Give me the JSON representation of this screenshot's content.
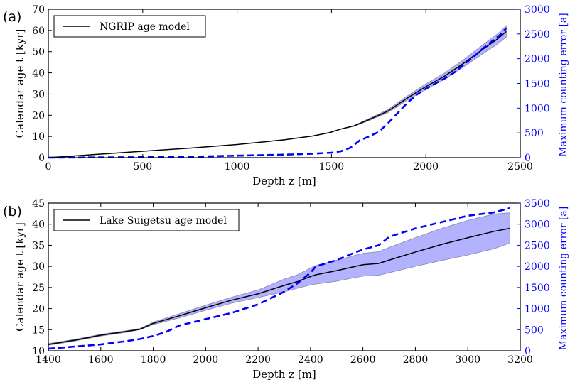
{
  "chart_data": [
    {
      "type": "line",
      "panel_label": "(a)",
      "xlabel": "Depth z [m]",
      "ylabel": "Calendar age t [kyr]",
      "y2label": "Maximum counting error [a]",
      "xlim": [
        0,
        2500
      ],
      "ylim": [
        0,
        70
      ],
      "y2lim": [
        0,
        3000
      ],
      "xticks": [
        0,
        500,
        1000,
        1500,
        2000,
        2500
      ],
      "yticks": [
        0,
        10,
        20,
        30,
        40,
        50,
        60,
        70
      ],
      "y2ticks": [
        0,
        500,
        1000,
        1500,
        2000,
        2500,
        3000
      ],
      "legend": {
        "placement": "top-left",
        "label": "NGRIP age model"
      },
      "colors": {
        "age": "#000000",
        "band": "#7f7fff",
        "error": "#0000ff"
      },
      "series": [
        {
          "name": "NGRIP age model",
          "axis": "left",
          "x": [
            0,
            250,
            500,
            750,
            1000,
            1250,
            1400,
            1490,
            1550,
            1620,
            1700,
            1800,
            1900,
            2000,
            2100,
            2200,
            2300,
            2380,
            2426
          ],
          "y": [
            0,
            1.5,
            3,
            4.5,
            6.2,
            8.4,
            10.2,
            11.8,
            13.5,
            15,
            18,
            22,
            28,
            33.5,
            38.5,
            44.5,
            51,
            56,
            59.5
          ],
          "band": {
            "lower": [
              0,
              1.5,
              3,
              4.5,
              6.2,
              8.4,
              10.2,
              11.8,
              13.4,
              14.8,
              17.5,
              21.3,
              27,
              32.2,
              37,
              42.8,
              48.9,
              53.6,
              56.9
            ],
            "upper": [
              0,
              1.5,
              3,
              4.5,
              6.2,
              8.4,
              10.2,
              11.8,
              13.6,
              15.2,
              18.5,
              22.7,
              29,
              34.8,
              40,
              46.2,
              53.1,
              58.4,
              62.1
            ]
          }
        },
        {
          "name": "",
          "axis": "right",
          "style": "dashed",
          "x": [
            0,
            250,
            500,
            750,
            1000,
            1250,
            1400,
            1500,
            1550,
            1600,
            1650,
            1700,
            1750,
            1800,
            1850,
            1900,
            1950,
            2000,
            2050,
            2100,
            2150,
            2200,
            2250,
            2300,
            2350,
            2400,
            2426
          ],
          "y": [
            0,
            5,
            10,
            20,
            40,
            60,
            80,
            100,
            130,
            200,
            350,
            430,
            520,
            700,
            900,
            1100,
            1270,
            1390,
            1500,
            1600,
            1720,
            1880,
            2030,
            2200,
            2350,
            2500,
            2620
          ]
        }
      ]
    },
    {
      "type": "line",
      "panel_label": "(b)",
      "xlabel": "Depth z [m]",
      "ylabel": "Calendar age t [kyr]",
      "y2label": "Maximum counting error [a]",
      "xlim": [
        1400,
        3200
      ],
      "ylim": [
        10,
        45
      ],
      "y2lim": [
        0,
        3500
      ],
      "xticks": [
        1400,
        1600,
        1800,
        2000,
        2200,
        2400,
        2600,
        2800,
        3000,
        3200
      ],
      "yticks": [
        10,
        15,
        20,
        25,
        30,
        35,
        40,
        45
      ],
      "y2ticks": [
        0,
        500,
        1000,
        1500,
        2000,
        2500,
        3000,
        3500
      ],
      "legend": {
        "placement": "top-left",
        "label": "Lake Suigetsu age model"
      },
      "colors": {
        "age": "#000000",
        "band": "#7f7fff",
        "error": "#0000ff"
      },
      "series": [
        {
          "name": "Lake Suigetsu age model",
          "axis": "left",
          "x": [
            1400,
            1500,
            1600,
            1700,
            1750,
            1800,
            1900,
            2000,
            2100,
            2200,
            2300,
            2350,
            2400,
            2420,
            2500,
            2600,
            2660,
            2700,
            2800,
            2900,
            3000,
            3100,
            3160
          ],
          "y": [
            11.5,
            12.5,
            13.7,
            14.6,
            15.1,
            16.5,
            18.3,
            20.2,
            22,
            23.5,
            25.5,
            26.4,
            27.6,
            28,
            29,
            30.4,
            30.7,
            31.5,
            33.4,
            35.2,
            36.8,
            38.3,
            39
          ],
          "band": {
            "lower": [
              11.3,
              12.3,
              13.5,
              14.4,
              15,
              16.2,
              17.8,
              19.6,
              21.3,
              22.6,
              24,
              24.8,
              25.6,
              25.8,
              26.5,
              27.7,
              27.9,
              28.5,
              30,
              31.4,
              32.7,
              34.2,
              35.5
            ],
            "upper": [
              11.7,
              12.7,
              13.9,
              14.8,
              15.3,
              16.8,
              18.8,
              20.8,
              22.7,
              24.4,
              27,
              28,
              29.6,
              30.2,
              31.5,
              33.1,
              33.5,
              34.5,
              36.8,
              39,
              40.9,
              42.4,
              42.7
            ]
          }
        },
        {
          "name": "",
          "axis": "right",
          "style": "dashed",
          "x": [
            1400,
            1500,
            1600,
            1700,
            1750,
            1800,
            1850,
            1900,
            2000,
            2100,
            2200,
            2300,
            2350,
            2400,
            2420,
            2500,
            2550,
            2600,
            2660,
            2700,
            2800,
            2900,
            3000,
            3100,
            3160
          ],
          "y": [
            50,
            100,
            150,
            230,
            280,
            350,
            450,
            600,
            750,
            900,
            1100,
            1400,
            1600,
            1850,
            2000,
            2150,
            2280,
            2400,
            2500,
            2700,
            2900,
            3050,
            3200,
            3280,
            3380
          ]
        }
      ]
    }
  ]
}
